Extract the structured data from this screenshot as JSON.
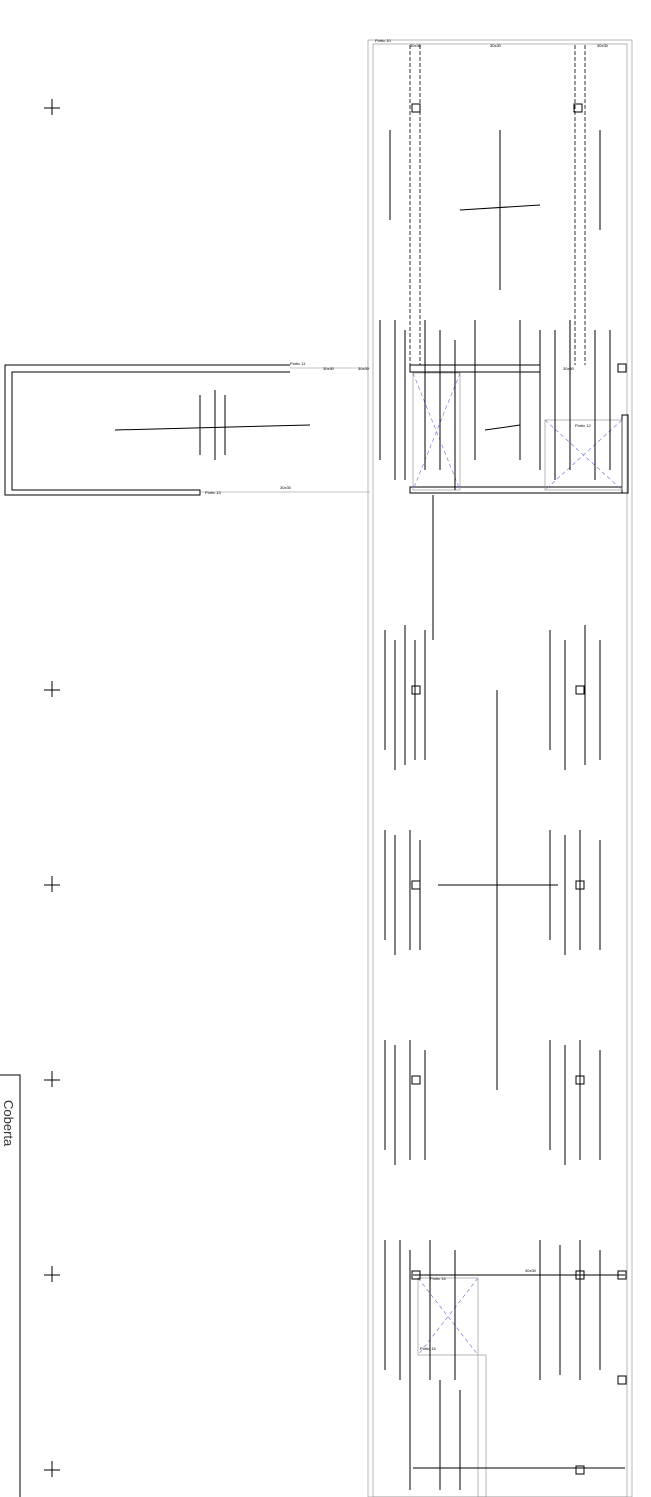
{
  "sheet": {
    "title": "Coberta"
  },
  "labels": {
    "frames": [
      "Pòrtic 10",
      "Pòrtic 11",
      "Pòrtic 12",
      "Pòrtic 13",
      "Pòrtic 14",
      "Pòrtic 15"
    ],
    "sections": [
      "30x30",
      "30x30",
      "30x30",
      "30x30",
      "30x30",
      "30x30",
      "30x30",
      "30x30"
    ]
  }
}
